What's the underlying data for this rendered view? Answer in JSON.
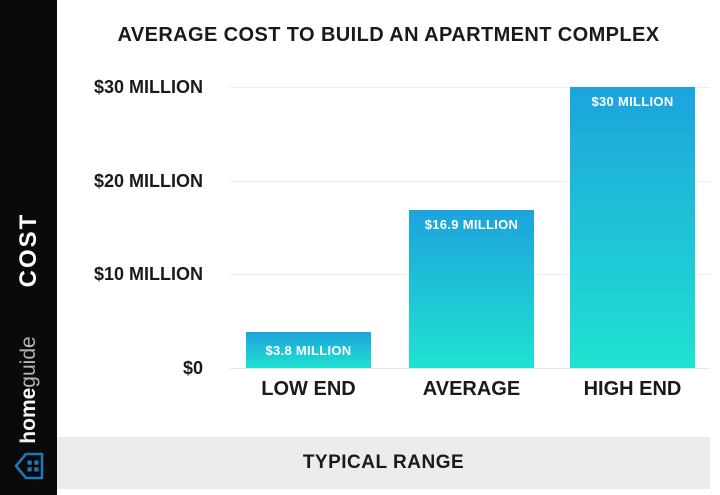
{
  "sidebar": {
    "axis_label": "COST",
    "brand_home": "home",
    "brand_guide": "guide",
    "logo_icon": "house-grid-icon"
  },
  "header": {
    "title": "AVERAGE COST TO BUILD AN APARTMENT COMPLEX"
  },
  "footer": {
    "label": "TYPICAL RANGE"
  },
  "chart_data": {
    "type": "bar",
    "title": "AVERAGE COST TO BUILD AN APARTMENT COMPLEX",
    "categories": [
      "LOW END",
      "AVERAGE",
      "HIGH END"
    ],
    "values": [
      3.8,
      16.9,
      30
    ],
    "bar_labels": [
      "$3.8 MILLION",
      "$16.9 MILLION",
      "$30 MILLION"
    ],
    "unit": "million USD",
    "xlabel": "TYPICAL RANGE",
    "ylabel": "COST",
    "ylim": [
      0,
      30
    ],
    "yticks": [
      {
        "value": 0,
        "label": "$0"
      },
      {
        "value": 10,
        "label": "$10 MILLION"
      },
      {
        "value": 20,
        "label": "$20 MILLION"
      },
      {
        "value": 30,
        "label": "$30 MILLION"
      }
    ],
    "grid": true,
    "legend": false,
    "colors": {
      "bar_gradient_top": "#1da3dc",
      "bar_gradient_bottom": "#1fe2d1",
      "bar_label_text": "#ffffff",
      "axis_text": "#1a1a1a",
      "gridline": "#efefef",
      "sidebar_background": "#0a0a0a",
      "footer_background": "#ececec",
      "logo_blue": "#1c78b8"
    }
  }
}
